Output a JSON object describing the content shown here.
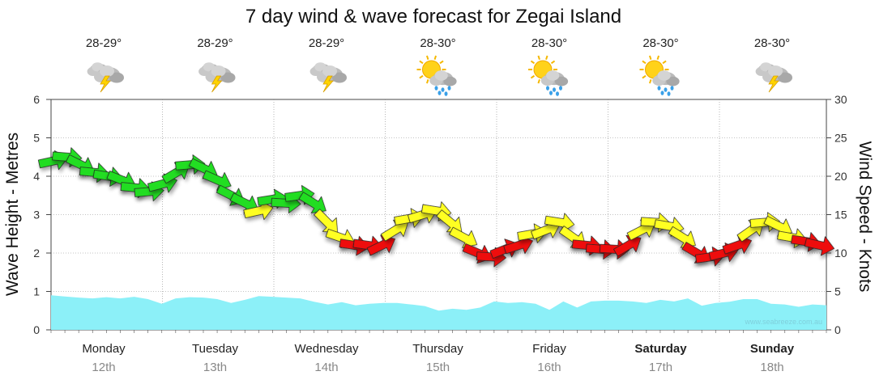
{
  "chart_data": {
    "type": "line",
    "title": "7 day wind & wave forecast for Zegai Island",
    "ylabel": "Wave Height - Metres",
    "y2label": "Wind Speed - Knots",
    "ylim": [
      0,
      6
    ],
    "y2lim": [
      0,
      30
    ],
    "yticks": [
      "0",
      "1",
      "2",
      "3",
      "4",
      "5",
      "6"
    ],
    "y2ticks": [
      "0",
      "5",
      "10",
      "15",
      "20",
      "25",
      "30"
    ],
    "grid": true,
    "watermark": "www.seabreeze.com.au",
    "days": [
      {
        "name": "Monday",
        "date": "12th",
        "temp": "28-29°",
        "icon": "thunderstorm-icon",
        "bold": false
      },
      {
        "name": "Tuesday",
        "date": "13th",
        "temp": "28-29°",
        "icon": "thunderstorm-icon",
        "bold": false
      },
      {
        "name": "Wednesday",
        "date": "14th",
        "temp": "28-29°",
        "icon": "thunderstorm-icon",
        "bold": false
      },
      {
        "name": "Thursday",
        "date": "15th",
        "temp": "28-30°",
        "icon": "sun-rain-icon",
        "bold": false
      },
      {
        "name": "Friday",
        "date": "16th",
        "temp": "28-30°",
        "icon": "sun-rain-icon",
        "bold": false
      },
      {
        "name": "Saturday",
        "date": "17th",
        "temp": "28-30°",
        "icon": "sun-rain-icon",
        "bold": true
      },
      {
        "name": "Sunday",
        "date": "18th",
        "temp": "28-30°",
        "icon": "thunderstorm-icon",
        "bold": true
      }
    ],
    "colors": {
      "wave_fill": "#8cf0f8",
      "wind_low": "#22dd22",
      "wind_mid": "#ffff22",
      "wind_high": "#ee1111",
      "grid": "#888888"
    },
    "wave_height_m": [
      0.9,
      0.87,
      0.84,
      0.82,
      0.85,
      0.82,
      0.86,
      0.8,
      0.68,
      0.82,
      0.85,
      0.84,
      0.8,
      0.7,
      0.78,
      0.88,
      0.86,
      0.84,
      0.82,
      0.73,
      0.66,
      0.72,
      0.64,
      0.68,
      0.7,
      0.7,
      0.66,
      0.62,
      0.5,
      0.55,
      0.52,
      0.58,
      0.74,
      0.7,
      0.72,
      0.68,
      0.52,
      0.74,
      0.58,
      0.74,
      0.76,
      0.76,
      0.74,
      0.7,
      0.78,
      0.74,
      0.82,
      0.63,
      0.7,
      0.73,
      0.8,
      0.8,
      0.68,
      0.66,
      0.6,
      0.66,
      0.64
    ],
    "wind_knots": [
      22,
      22.5,
      21.5,
      20.5,
      20,
      19.5,
      18.5,
      18,
      19,
      20.5,
      21.5,
      21,
      19.5,
      17.5,
      16.5,
      15.5,
      17,
      16.5,
      17.5,
      16.5,
      14,
      12,
      11,
      11,
      11,
      13,
      14.5,
      15,
      15.5,
      14,
      12,
      10,
      9.5,
      10.5,
      11,
      12.5,
      13,
      14,
      12,
      11,
      10.5,
      10.5,
      11,
      13,
      14,
      13.5,
      12,
      10,
      9.5,
      10,
      11,
      13,
      14,
      13.5,
      12,
      11.5,
      11
    ]
  }
}
